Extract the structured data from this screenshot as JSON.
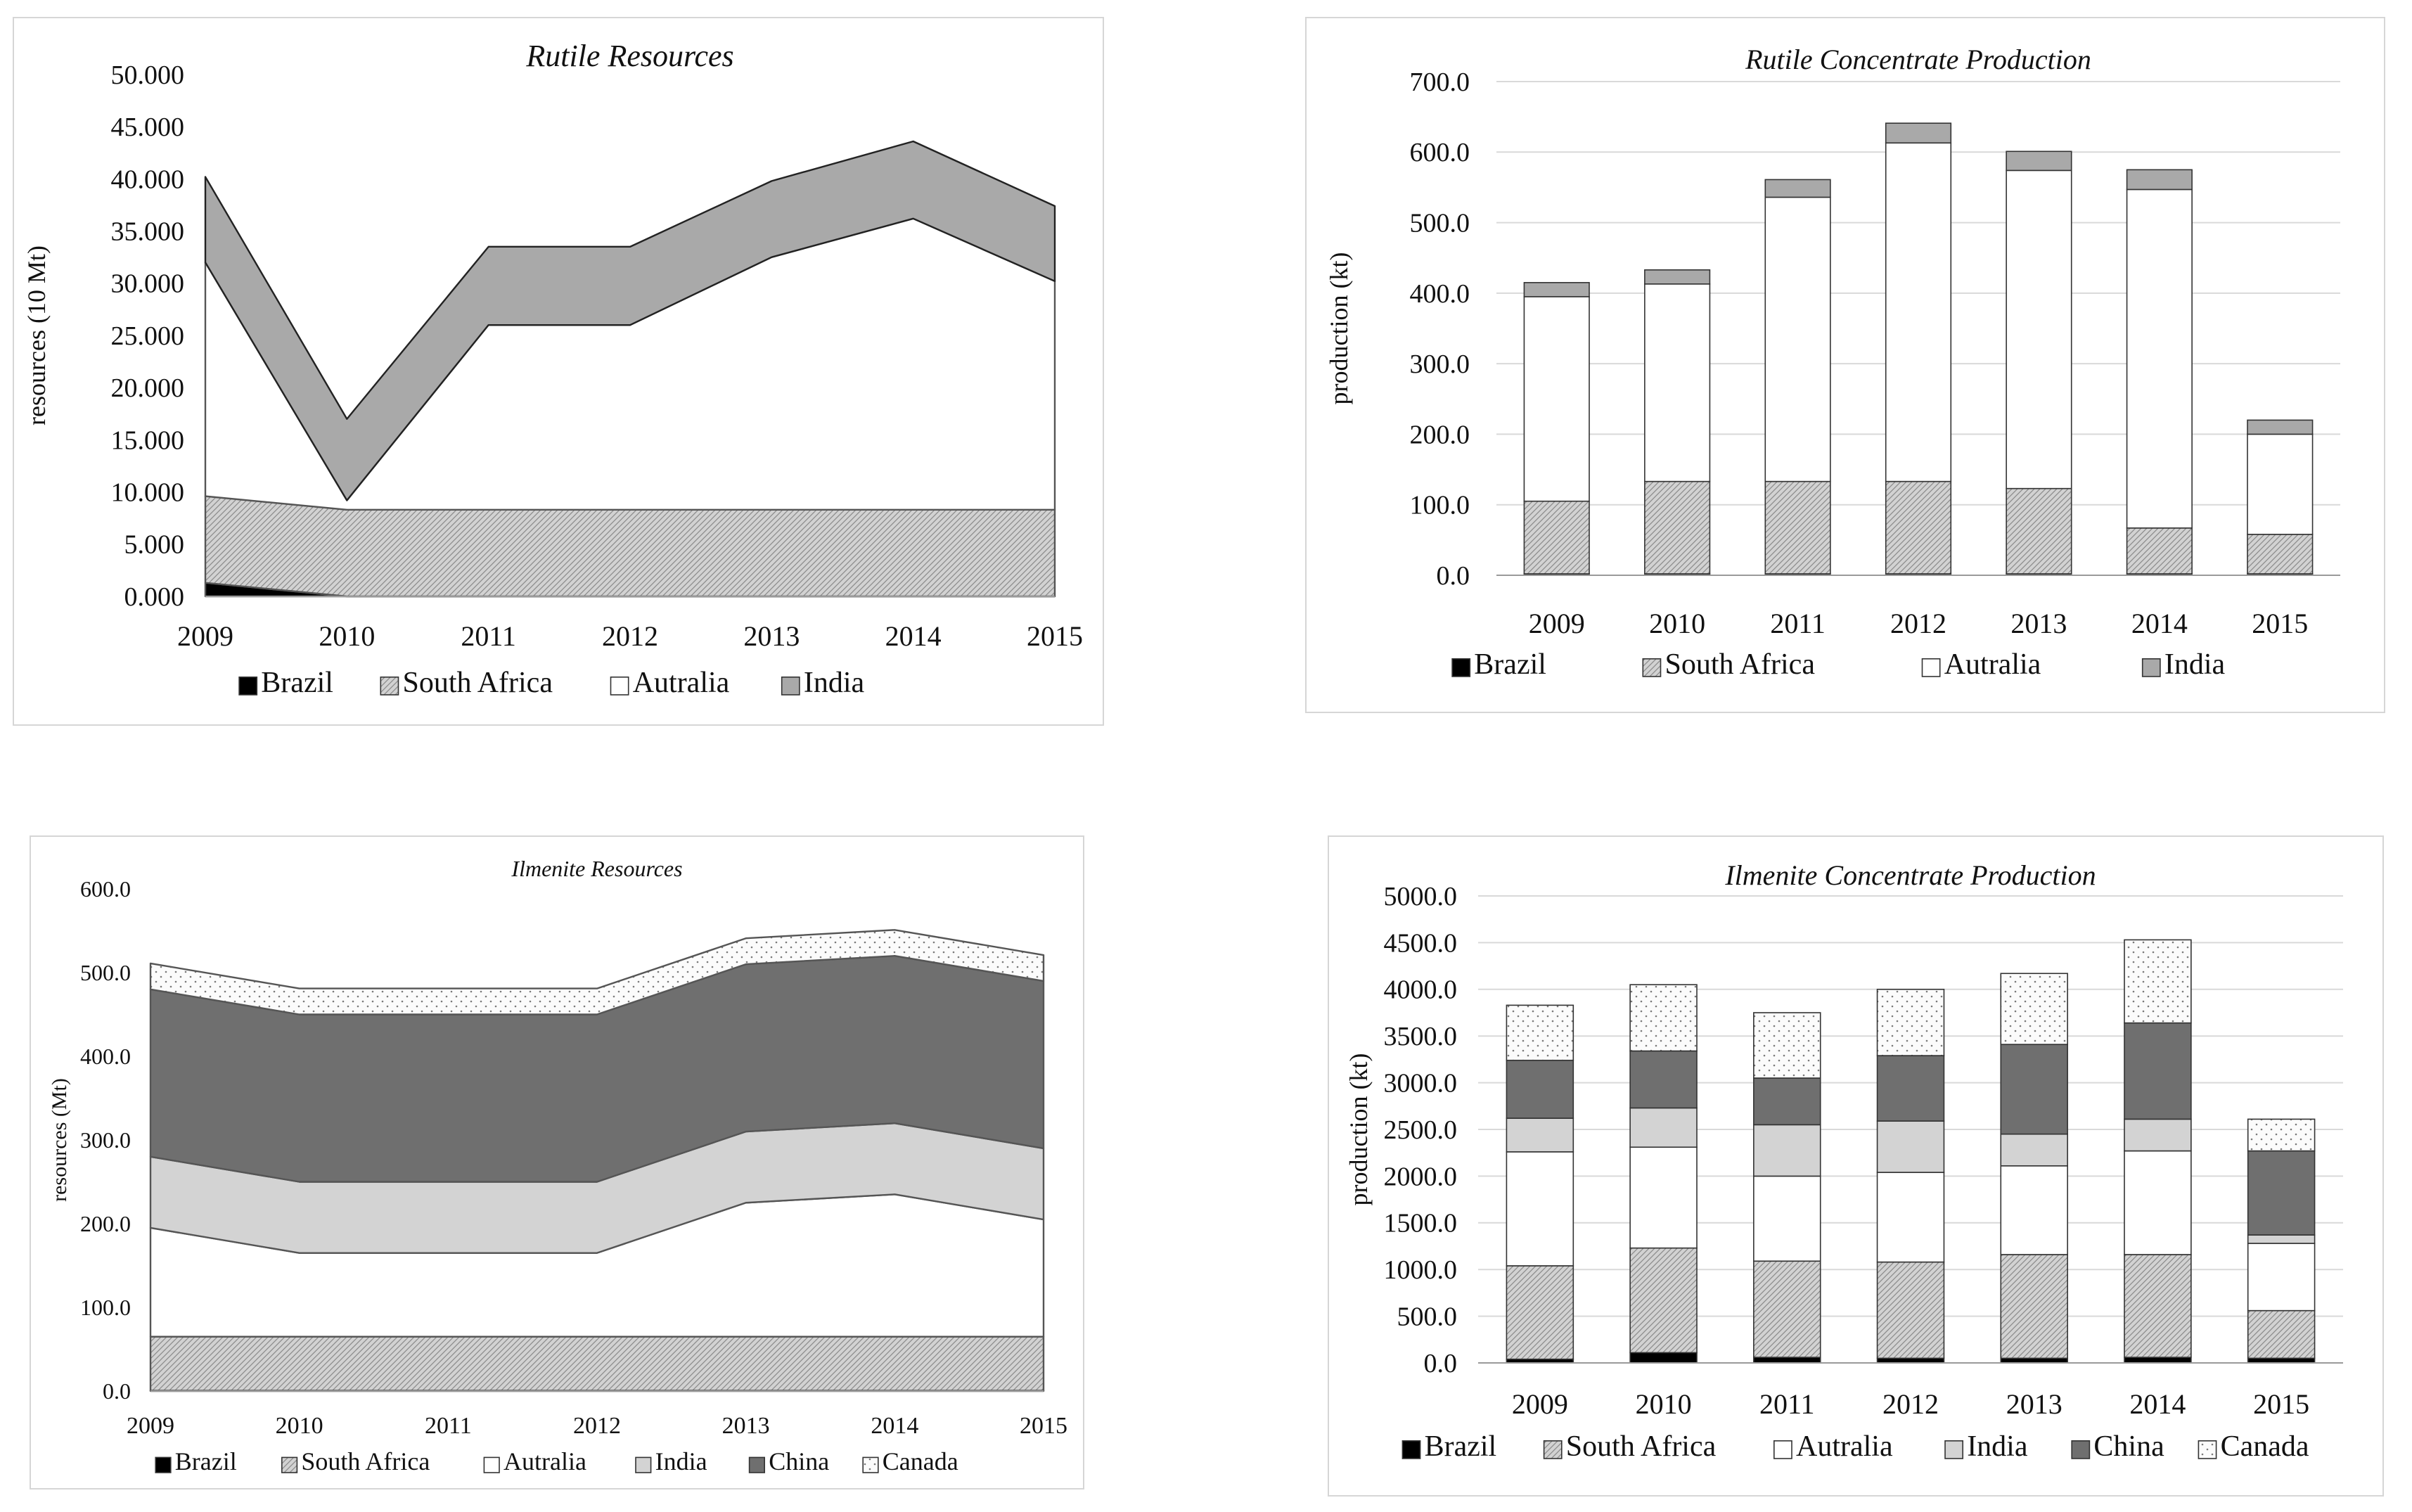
{
  "colors": {
    "brazil": "#000000",
    "southAfrica": "#cfcfcf",
    "autralia": "#ffffff",
    "india": "#a9a9a9",
    "indiaLight": "#d3d3d3",
    "china": "#6f6f6f",
    "canada": "#fafafa",
    "gridline": "#d9d9d9"
  },
  "chart_data": [
    {
      "type": "area",
      "title": "Rutile Resources",
      "ylabel": "resources (10 Mt)",
      "xlabel": "",
      "ylim": [
        0,
        50
      ],
      "yticks": [
        "0.000",
        "5.000",
        "10.000",
        "15.000",
        "20.000",
        "25.000",
        "30.000",
        "35.000",
        "40.000",
        "45.000",
        "50.000"
      ],
      "categories": [
        "2009",
        "2010",
        "2011",
        "2012",
        "2013",
        "2014",
        "2015"
      ],
      "legend": [
        "Brazil",
        "South Africa",
        "Autralia",
        "India"
      ],
      "series": [
        {
          "name": "Brazil",
          "values": [
            1.3,
            0.0,
            0.0,
            0.0,
            0.0,
            0.0,
            0.0
          ]
        },
        {
          "name": "South Africa",
          "values": [
            8.3,
            8.3,
            8.3,
            8.3,
            8.3,
            8.3,
            8.3
          ]
        },
        {
          "name": "Autralia",
          "values": [
            22.4,
            0.9,
            17.7,
            17.7,
            24.2,
            27.9,
            21.9
          ]
        },
        {
          "name": "India",
          "values": [
            8.2,
            7.8,
            7.5,
            7.5,
            7.3,
            7.4,
            7.2
          ]
        }
      ]
    },
    {
      "type": "bar",
      "title": "Rutile Concentrate Production",
      "ylabel": "production (kt)",
      "xlabel": "",
      "ylim": [
        0,
        700
      ],
      "yticks": [
        "0.0",
        "100.0",
        "200.0",
        "300.0",
        "400.0",
        "500.0",
        "600.0",
        "700.0"
      ],
      "categories": [
        "2009",
        "2010",
        "2011",
        "2012",
        "2013",
        "2014",
        "2015"
      ],
      "legend": [
        "Brazil",
        "South Africa",
        "Autralia",
        "India"
      ],
      "series": [
        {
          "name": "Brazil",
          "values": [
            2,
            2,
            2,
            2,
            2,
            2,
            2
          ]
        },
        {
          "name": "South Africa",
          "values": [
            103,
            131,
            131,
            131,
            121,
            65,
            56
          ]
        },
        {
          "name": "Autralia",
          "values": [
            290,
            280,
            403,
            480,
            451,
            480,
            142
          ]
        },
        {
          "name": "India",
          "values": [
            20,
            20,
            25,
            28,
            27,
            28,
            20
          ]
        }
      ]
    },
    {
      "type": "area",
      "title": "Ilmenite Resources",
      "ylabel": "resources (Mt)",
      "xlabel": "",
      "ylim": [
        0,
        600
      ],
      "yticks": [
        "0.0",
        "100.0",
        "200.0",
        "300.0",
        "400.0",
        "500.0",
        "600.0"
      ],
      "categories": [
        "2009",
        "2010",
        "2011",
        "2012",
        "2013",
        "2014",
        "2015"
      ],
      "legend": [
        "Brazil",
        "South Africa",
        "Autralia",
        "India",
        "China",
        "Canada"
      ],
      "series": [
        {
          "name": "Brazil",
          "values": [
            0.5,
            0.5,
            0.5,
            0.5,
            0.5,
            0.5,
            0.5
          ]
        },
        {
          "name": "South Africa",
          "values": [
            64.5,
            64.5,
            64.5,
            64.5,
            64.5,
            64.5,
            64.5
          ]
        },
        {
          "name": "Autralia",
          "values": [
            130,
            100,
            100,
            100,
            160,
            170,
            140
          ]
        },
        {
          "name": "India",
          "values": [
            85,
            85,
            85,
            85,
            85,
            85,
            85
          ]
        },
        {
          "name": "China",
          "values": [
            200,
            200,
            200,
            200,
            200,
            200,
            200
          ]
        },
        {
          "name": "Canada",
          "values": [
            31,
            31,
            31,
            31,
            31,
            31,
            31
          ]
        }
      ]
    },
    {
      "type": "bar",
      "title": "Ilmenite Concentrate Production",
      "ylabel": "production (kt)",
      "xlabel": "",
      "ylim": [
        0,
        5000
      ],
      "yticks": [
        "0.0",
        "500.0",
        "1000.0",
        "1500.0",
        "2000.0",
        "2500.0",
        "3000.0",
        "3500.0",
        "4000.0",
        "4500.0",
        "5000.0"
      ],
      "categories": [
        "2009",
        "2010",
        "2011",
        "2012",
        "2013",
        "2014",
        "2015"
      ],
      "legend": [
        "Brazil",
        "South Africa",
        "Autralia",
        "India",
        "China",
        "Canada"
      ],
      "series": [
        {
          "name": "Brazil",
          "values": [
            40,
            110,
            60,
            50,
            50,
            60,
            50
          ]
        },
        {
          "name": "South Africa",
          "values": [
            1000,
            1120,
            1030,
            1030,
            1110,
            1100,
            510
          ]
        },
        {
          "name": "Autralia",
          "values": [
            1220,
            1080,
            910,
            960,
            950,
            1110,
            720
          ]
        },
        {
          "name": "India",
          "values": [
            360,
            420,
            550,
            550,
            340,
            340,
            90
          ]
        },
        {
          "name": "China",
          "values": [
            620,
            610,
            500,
            700,
            960,
            1030,
            900
          ]
        },
        {
          "name": "Canada",
          "values": [
            590,
            710,
            700,
            710,
            760,
            890,
            340
          ]
        }
      ]
    }
  ]
}
